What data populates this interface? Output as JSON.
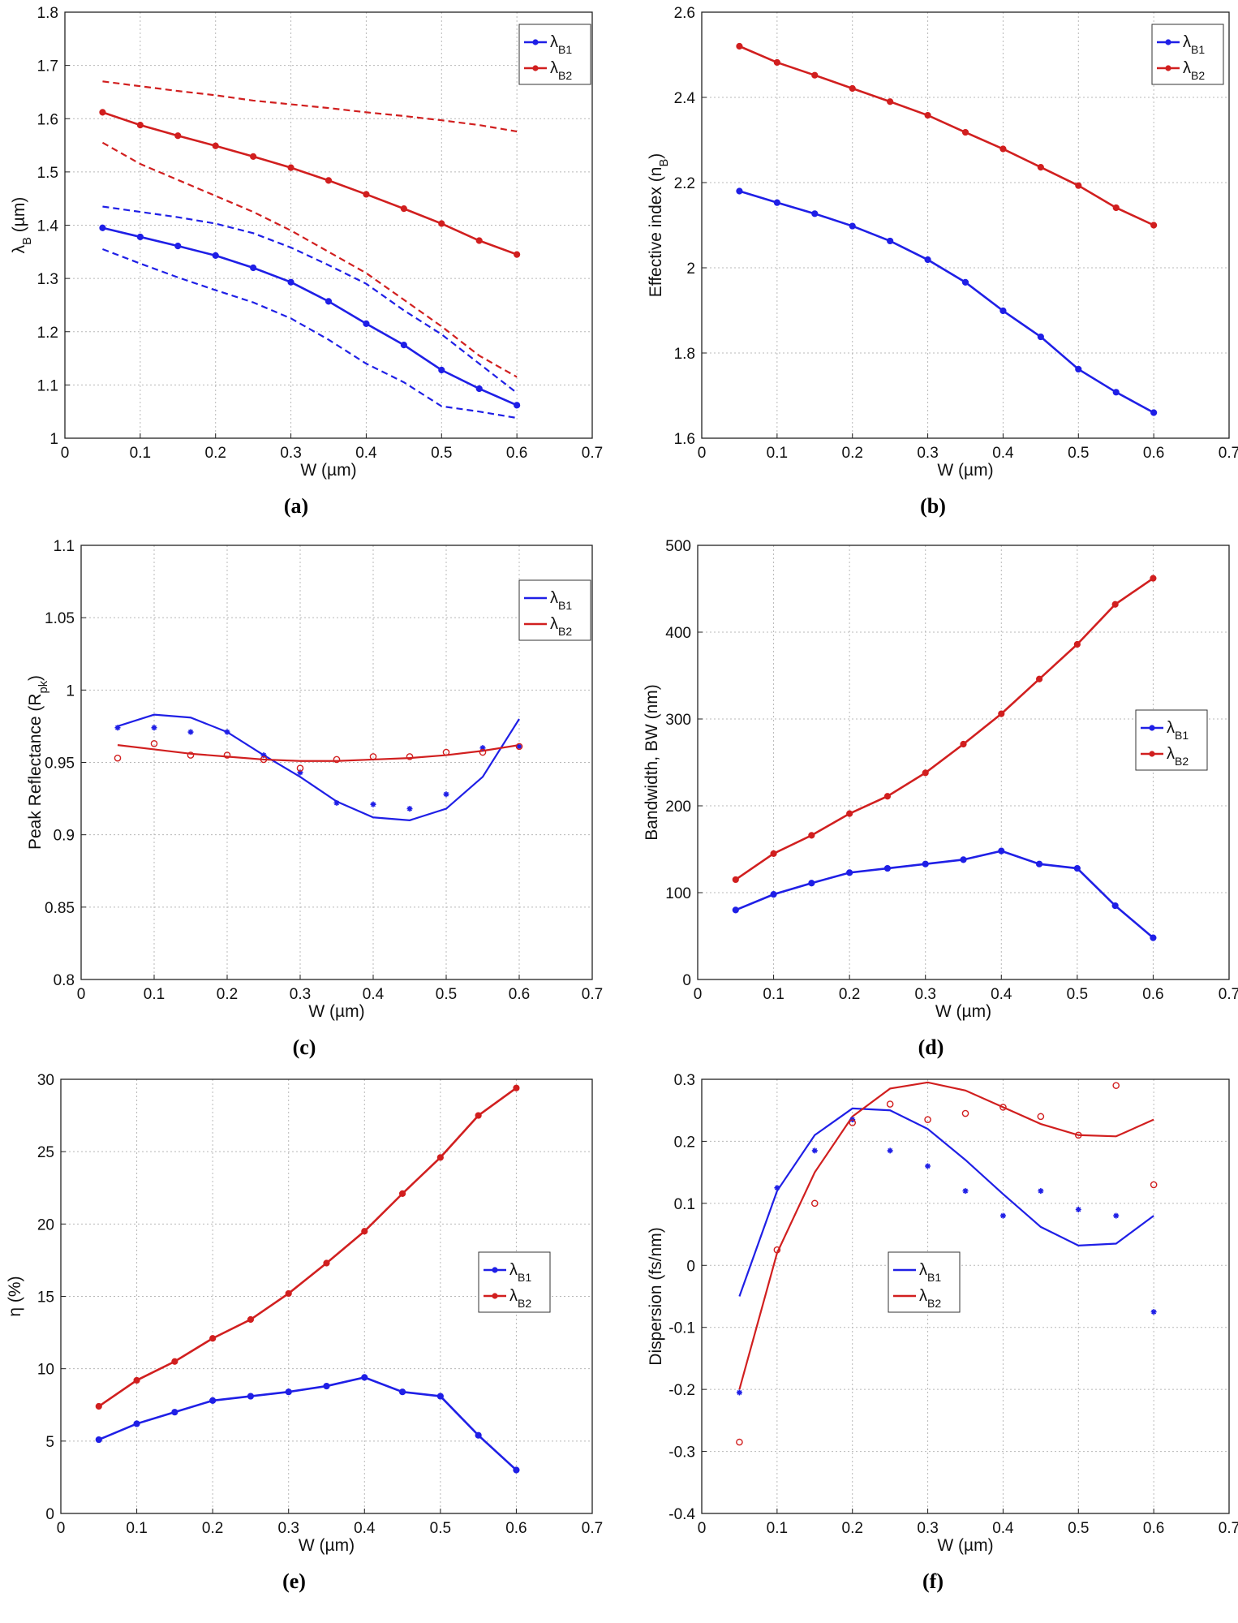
{
  "colors": {
    "blue": "#1f1fe6",
    "red": "#d11f1f",
    "grid": "#b8b8b8",
    "axis": "#222222"
  },
  "chart_data": [
    {
      "id": "a",
      "type": "line",
      "panel_label": "(a)",
      "xlabel": "W (µm)",
      "ylabel": "λ_B (µm)",
      "ylabel_main": "λ",
      "ylabel_sub": "B",
      "ylabel_tail": " (µm)",
      "xlim": [
        0,
        0.7
      ],
      "ylim": [
        1,
        1.8
      ],
      "xticks": [
        0,
        0.1,
        0.2,
        0.3,
        0.4,
        0.5,
        0.6,
        0.7
      ],
      "xtick_labels": [
        "0",
        "0.1",
        "0.2",
        "0.3",
        "0.4",
        "0.5",
        "0.6",
        "0.7"
      ],
      "yticks": [
        1,
        1.1,
        1.2,
        1.3,
        1.4,
        1.5,
        1.6,
        1.7,
        1.8
      ],
      "ytick_labels": [
        "1",
        "1.1",
        "1.2",
        "1.3",
        "1.4",
        "1.5",
        "1.6",
        "1.7",
        "1.8"
      ],
      "grid": true,
      "legend_position": "top-right",
      "legend": [
        {
          "main": "λ",
          "sub": "B1",
          "color": "blue",
          "marker": "dot"
        },
        {
          "main": "λ",
          "sub": "B2",
          "color": "red",
          "marker": "dot"
        }
      ],
      "series": [
        {
          "name": "λB1",
          "color": "blue",
          "style": "line-marker",
          "x": [
            0.05,
            0.1,
            0.15,
            0.2,
            0.25,
            0.3,
            0.35,
            0.4,
            0.45,
            0.5,
            0.55,
            0.6
          ],
          "y": [
            1.395,
            1.378,
            1.361,
            1.343,
            1.32,
            1.293,
            1.257,
            1.215,
            1.175,
            1.128,
            1.093,
            1.062
          ]
        },
        {
          "name": "λB2",
          "color": "red",
          "style": "line-marker",
          "x": [
            0.05,
            0.1,
            0.15,
            0.2,
            0.25,
            0.3,
            0.35,
            0.4,
            0.45,
            0.5,
            0.55,
            0.6
          ],
          "y": [
            1.612,
            1.588,
            1.568,
            1.549,
            1.529,
            1.508,
            1.484,
            1.458,
            1.431,
            1.403,
            1.371,
            1.345
          ]
        },
        {
          "name": "λB2 upper",
          "color": "red",
          "style": "dashed",
          "x": [
            0.05,
            0.1,
            0.15,
            0.2,
            0.25,
            0.3,
            0.35,
            0.4,
            0.45,
            0.5,
            0.55,
            0.6
          ],
          "y": [
            1.67,
            1.661,
            1.652,
            1.644,
            1.634,
            1.627,
            1.62,
            1.612,
            1.605,
            1.597,
            1.588,
            1.576
          ]
        },
        {
          "name": "λB2 lower",
          "color": "red",
          "style": "dashed",
          "x": [
            0.05,
            0.1,
            0.15,
            0.2,
            0.25,
            0.3,
            0.35,
            0.4,
            0.45,
            0.5,
            0.55,
            0.6
          ],
          "y": [
            1.555,
            1.515,
            1.485,
            1.455,
            1.425,
            1.39,
            1.35,
            1.31,
            1.26,
            1.21,
            1.155,
            1.115
          ]
        },
        {
          "name": "λB1 upper",
          "color": "blue",
          "style": "dashed",
          "x": [
            0.05,
            0.1,
            0.15,
            0.2,
            0.25,
            0.3,
            0.35,
            0.4,
            0.45,
            0.5,
            0.55,
            0.6
          ],
          "y": [
            1.435,
            1.425,
            1.415,
            1.403,
            1.385,
            1.358,
            1.325,
            1.29,
            1.24,
            1.195,
            1.14,
            1.085
          ]
        },
        {
          "name": "λB1 lower",
          "color": "blue",
          "style": "dashed",
          "x": [
            0.05,
            0.1,
            0.15,
            0.2,
            0.25,
            0.3,
            0.35,
            0.4,
            0.45,
            0.5,
            0.55,
            0.6
          ],
          "y": [
            1.355,
            1.328,
            1.302,
            1.278,
            1.255,
            1.225,
            1.185,
            1.14,
            1.105,
            1.06,
            1.05,
            1.038
          ]
        }
      ]
    },
    {
      "id": "b",
      "type": "line",
      "panel_label": "(b)",
      "xlabel": "W (µm)",
      "ylabel": "Effective index (n_B)",
      "ylabel_main": "Effective index (n",
      "ylabel_sub": "B",
      "ylabel_tail": ")",
      "xlim": [
        0,
        0.7
      ],
      "ylim": [
        1.6,
        2.6
      ],
      "xticks": [
        0,
        0.1,
        0.2,
        0.3,
        0.4,
        0.5,
        0.6,
        0.7
      ],
      "xtick_labels": [
        "0",
        "0.1",
        "0.2",
        "0.3",
        "0.4",
        "0.5",
        "0.6",
        "0.7"
      ],
      "yticks": [
        1.6,
        1.8,
        2.0,
        2.2,
        2.4,
        2.6
      ],
      "ytick_labels": [
        "1.6",
        "1.8",
        "2",
        "2.2",
        "2.4",
        "2.6"
      ],
      "grid": true,
      "legend_position": "top-right",
      "legend": [
        {
          "main": "λ",
          "sub": "B1",
          "color": "blue",
          "marker": "dot"
        },
        {
          "main": "λ",
          "sub": "B2",
          "color": "red",
          "marker": "dot"
        }
      ],
      "series": [
        {
          "name": "λB1",
          "color": "blue",
          "style": "line-marker",
          "x": [
            0.05,
            0.1,
            0.15,
            0.2,
            0.25,
            0.3,
            0.35,
            0.4,
            0.45,
            0.5,
            0.55,
            0.6
          ],
          "y": [
            2.18,
            2.153,
            2.127,
            2.098,
            2.063,
            2.019,
            1.966,
            1.899,
            1.838,
            1.762,
            1.708,
            1.66
          ]
        },
        {
          "name": "λB2",
          "color": "red",
          "style": "line-marker",
          "x": [
            0.05,
            0.1,
            0.15,
            0.2,
            0.25,
            0.3,
            0.35,
            0.4,
            0.45,
            0.5,
            0.55,
            0.6
          ],
          "y": [
            2.52,
            2.482,
            2.452,
            2.421,
            2.39,
            2.358,
            2.318,
            2.279,
            2.236,
            2.193,
            2.141,
            2.1
          ]
        }
      ]
    },
    {
      "id": "c",
      "type": "line",
      "panel_label": "(c)",
      "xlabel": "W (µm)",
      "ylabel": "Peak Reflectance (R_pk)",
      "ylabel_main": "Peak Reflectance (R",
      "ylabel_sub": "pk",
      "ylabel_tail": ")",
      "xlim": [
        0,
        0.7
      ],
      "ylim": [
        0.8,
        1.1
      ],
      "xticks": [
        0,
        0.1,
        0.2,
        0.3,
        0.4,
        0.5,
        0.6,
        0.7
      ],
      "xtick_labels": [
        "0",
        "0.1",
        "0.2",
        "0.3",
        "0.4",
        "0.5",
        "0.6",
        "0.7"
      ],
      "yticks": [
        0.8,
        0.85,
        0.9,
        0.95,
        1.0,
        1.05,
        1.1
      ],
      "ytick_labels": [
        "0.8",
        "0.85",
        "0.9",
        "0.95",
        "1",
        "1.05",
        "1.1"
      ],
      "grid": true,
      "legend_position": "top-right",
      "legend": [
        {
          "main": "λ",
          "sub": "B1",
          "color": "blue",
          "marker": "none"
        },
        {
          "main": "λ",
          "sub": "B2",
          "color": "red",
          "marker": "none"
        }
      ],
      "series": [
        {
          "name": "λB1 fit",
          "color": "blue",
          "style": "line",
          "x": [
            0.05,
            0.1,
            0.15,
            0.2,
            0.25,
            0.3,
            0.35,
            0.4,
            0.45,
            0.5,
            0.55,
            0.6
          ],
          "y": [
            0.975,
            0.983,
            0.981,
            0.971,
            0.955,
            0.94,
            0.923,
            0.912,
            0.91,
            0.918,
            0.94,
            0.98
          ]
        },
        {
          "name": "λB2 fit",
          "color": "red",
          "style": "line",
          "x": [
            0.05,
            0.1,
            0.15,
            0.2,
            0.25,
            0.3,
            0.35,
            0.4,
            0.45,
            0.5,
            0.55,
            0.6
          ],
          "y": [
            0.962,
            0.959,
            0.956,
            0.954,
            0.952,
            0.951,
            0.951,
            0.952,
            0.953,
            0.955,
            0.958,
            0.962
          ]
        },
        {
          "name": "λB1 data",
          "color": "blue",
          "style": "star",
          "x": [
            0.05,
            0.1,
            0.15,
            0.2,
            0.25,
            0.3,
            0.35,
            0.4,
            0.45,
            0.5,
            0.55,
            0.6
          ],
          "y": [
            0.974,
            0.974,
            0.971,
            0.971,
            0.955,
            0.943,
            0.922,
            0.921,
            0.918,
            0.928,
            0.96,
            0.961
          ]
        },
        {
          "name": "λB2 data",
          "color": "red",
          "style": "circle",
          "x": [
            0.05,
            0.1,
            0.15,
            0.2,
            0.25,
            0.3,
            0.35,
            0.4,
            0.45,
            0.5,
            0.55,
            0.6
          ],
          "y": [
            0.953,
            0.963,
            0.955,
            0.955,
            0.952,
            0.946,
            0.952,
            0.954,
            0.954,
            0.957,
            0.957,
            0.961
          ]
        }
      ]
    },
    {
      "id": "d",
      "type": "line",
      "panel_label": "(d)",
      "xlabel": "W (µm)",
      "ylabel": "Bandwidth, BW (nm)",
      "ylabel_main": "Bandwidth, BW (nm)",
      "ylabel_sub": "",
      "ylabel_tail": "",
      "xlim": [
        0,
        0.7
      ],
      "ylim": [
        0,
        500
      ],
      "xticks": [
        0,
        0.1,
        0.2,
        0.3,
        0.4,
        0.5,
        0.6,
        0.7
      ],
      "xtick_labels": [
        "0",
        "0.1",
        "0.2",
        "0.3",
        "0.4",
        "0.5",
        "0.6",
        "0.7"
      ],
      "yticks": [
        0,
        100,
        200,
        300,
        400,
        500
      ],
      "ytick_labels": [
        "0",
        "100",
        "200",
        "300",
        "400",
        "500"
      ],
      "grid": true,
      "legend_position": "center-right",
      "legend": [
        {
          "main": "λ",
          "sub": "B1",
          "color": "blue",
          "marker": "dot"
        },
        {
          "main": "λ",
          "sub": "B2",
          "color": "red",
          "marker": "dot"
        }
      ],
      "series": [
        {
          "name": "λB1",
          "color": "blue",
          "style": "line-marker",
          "x": [
            0.05,
            0.1,
            0.15,
            0.2,
            0.25,
            0.3,
            0.35,
            0.4,
            0.45,
            0.5,
            0.55,
            0.6
          ],
          "y": [
            80,
            98,
            111,
            123,
            128,
            133,
            138,
            148,
            133,
            128,
            85,
            48
          ]
        },
        {
          "name": "λB2",
          "color": "red",
          "style": "line-marker",
          "x": [
            0.05,
            0.1,
            0.15,
            0.2,
            0.25,
            0.3,
            0.35,
            0.4,
            0.45,
            0.5,
            0.55,
            0.6
          ],
          "y": [
            115,
            145,
            166,
            191,
            211,
            238,
            271,
            306,
            346,
            386,
            432,
            462
          ]
        }
      ]
    },
    {
      "id": "e",
      "type": "line",
      "panel_label": "(e)",
      "xlabel": "W (µm)",
      "ylabel": "η (%)",
      "ylabel_main": "η (%)",
      "ylabel_sub": "",
      "ylabel_tail": "",
      "xlim": [
        0,
        0.7
      ],
      "ylim": [
        0,
        30
      ],
      "xticks": [
        0,
        0.1,
        0.2,
        0.3,
        0.4,
        0.5,
        0.6,
        0.7
      ],
      "xtick_labels": [
        "0",
        "0.1",
        "0.2",
        "0.3",
        "0.4",
        "0.5",
        "0.6",
        "0.7"
      ],
      "yticks": [
        0,
        5,
        10,
        15,
        20,
        25,
        30
      ],
      "ytick_labels": [
        "0",
        "5",
        "10",
        "15",
        "20",
        "25",
        "30"
      ],
      "grid": true,
      "legend_position": "center-right",
      "legend": [
        {
          "main": "λ",
          "sub": "B1",
          "color": "blue",
          "marker": "dot"
        },
        {
          "main": "λ",
          "sub": "B2",
          "color": "red",
          "marker": "dot"
        }
      ],
      "series": [
        {
          "name": "λB1",
          "color": "blue",
          "style": "line-marker",
          "x": [
            0.05,
            0.1,
            0.15,
            0.2,
            0.25,
            0.3,
            0.35,
            0.4,
            0.45,
            0.5,
            0.55,
            0.6
          ],
          "y": [
            5.1,
            6.2,
            7.0,
            7.8,
            8.1,
            8.4,
            8.8,
            9.4,
            8.4,
            8.1,
            5.4,
            3.0
          ]
        },
        {
          "name": "λB2",
          "color": "red",
          "style": "line-marker",
          "x": [
            0.05,
            0.1,
            0.15,
            0.2,
            0.25,
            0.3,
            0.35,
            0.4,
            0.45,
            0.5,
            0.55,
            0.6
          ],
          "y": [
            7.4,
            9.2,
            10.5,
            12.1,
            13.4,
            15.2,
            17.3,
            19.5,
            22.1,
            24.6,
            27.5,
            29.4
          ]
        }
      ]
    },
    {
      "id": "f",
      "type": "line",
      "panel_label": "(f)",
      "xlabel": "W (µm)",
      "ylabel": "Dispersion (fs/nm)",
      "ylabel_main": "Dispersion (fs/nm)",
      "ylabel_sub": "",
      "ylabel_tail": "",
      "xlim": [
        0,
        0.7
      ],
      "ylim": [
        -0.4,
        0.3
      ],
      "xticks": [
        0,
        0.1,
        0.2,
        0.3,
        0.4,
        0.5,
        0.6,
        0.7
      ],
      "xtick_labels": [
        "0",
        "0.1",
        "0.2",
        "0.3",
        "0.4",
        "0.5",
        "0.6",
        "0.7"
      ],
      "yticks": [
        -0.4,
        -0.3,
        -0.2,
        -0.1,
        0,
        0.1,
        0.2,
        0.3
      ],
      "ytick_labels": [
        "-0.4",
        "-0.3",
        "-0.2",
        "-0.1",
        "0",
        "0.1",
        "0.2",
        "0.3"
      ],
      "grid": true,
      "legend_position": "center",
      "legend": [
        {
          "main": "λ",
          "sub": "B1",
          "color": "blue",
          "marker": "none"
        },
        {
          "main": "λ",
          "sub": "B2",
          "color": "red",
          "marker": "none"
        }
      ],
      "series": [
        {
          "name": "λB1 fit",
          "color": "blue",
          "style": "line",
          "x": [
            0.05,
            0.1,
            0.15,
            0.2,
            0.25,
            0.3,
            0.35,
            0.4,
            0.45,
            0.5,
            0.55,
            0.6
          ],
          "y": [
            -0.05,
            0.12,
            0.21,
            0.253,
            0.25,
            0.22,
            0.17,
            0.115,
            0.062,
            0.032,
            0.035,
            0.08
          ]
        },
        {
          "name": "λB2 fit",
          "color": "red",
          "style": "line",
          "x": [
            0.05,
            0.1,
            0.15,
            0.2,
            0.25,
            0.3,
            0.35,
            0.4,
            0.45,
            0.5,
            0.55,
            0.6
          ],
          "y": [
            -0.2,
            0.02,
            0.15,
            0.24,
            0.285,
            0.295,
            0.282,
            0.255,
            0.228,
            0.21,
            0.208,
            0.235
          ]
        },
        {
          "name": "λB1 data",
          "color": "blue",
          "style": "star",
          "x": [
            0.05,
            0.1,
            0.15,
            0.2,
            0.25,
            0.3,
            0.35,
            0.4,
            0.45,
            0.5,
            0.55,
            0.6
          ],
          "y": [
            -0.205,
            0.125,
            0.185,
            0.235,
            0.185,
            0.16,
            0.12,
            0.08,
            0.12,
            0.09,
            0.08,
            -0.075
          ]
        },
        {
          "name": "λB2 data",
          "color": "red",
          "style": "circle",
          "x": [
            0.05,
            0.1,
            0.15,
            0.2,
            0.25,
            0.3,
            0.35,
            0.4,
            0.45,
            0.5,
            0.55,
            0.6
          ],
          "y": [
            -0.285,
            0.025,
            0.1,
            0.23,
            0.26,
            0.235,
            0.245,
            0.255,
            0.24,
            0.21,
            0.29,
            0.13
          ]
        }
      ]
    }
  ]
}
